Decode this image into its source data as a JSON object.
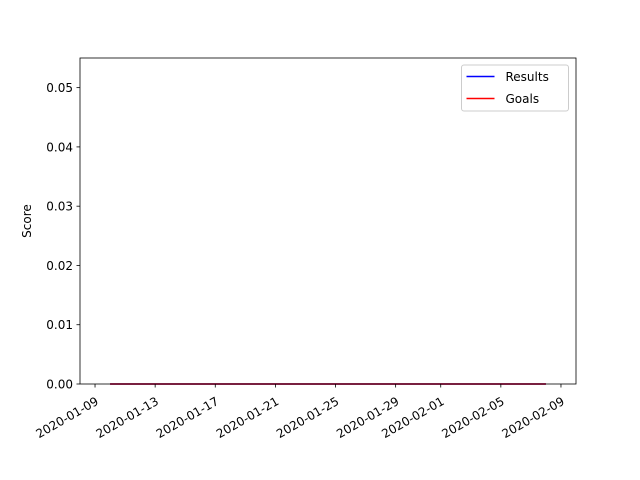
{
  "chart_data": {
    "type": "line",
    "title": "",
    "xlabel": "",
    "ylabel": "Score",
    "xlim": [
      "2020-01-08",
      "2020-02-10"
    ],
    "ylim": [
      0,
      0.055
    ],
    "x_tick_labels": [
      "2020-01-09",
      "2020-01-13",
      "2020-01-17",
      "2020-01-21",
      "2020-01-25",
      "2020-01-29",
      "2020-02-01",
      "2020-02-05",
      "2020-02-09"
    ],
    "y_tick_labels": [
      "0.00",
      "0.01",
      "0.02",
      "0.03",
      "0.04",
      "0.05"
    ],
    "y_ticks": [
      0,
      0.01,
      0.02,
      0.03,
      0.04,
      0.05
    ],
    "x_tick_rotation_deg": 30,
    "legend_position": "top-right",
    "grid": false,
    "series": [
      {
        "name": "Results",
        "color": "#0000ff",
        "x": [
          "2020-01-10",
          "2020-02-08"
        ],
        "y": [
          0,
          0
        ]
      },
      {
        "name": "Goals",
        "color": "#ff0000",
        "x": [
          "2020-01-10",
          "2020-02-08"
        ],
        "y": [
          0,
          0
        ]
      }
    ]
  }
}
